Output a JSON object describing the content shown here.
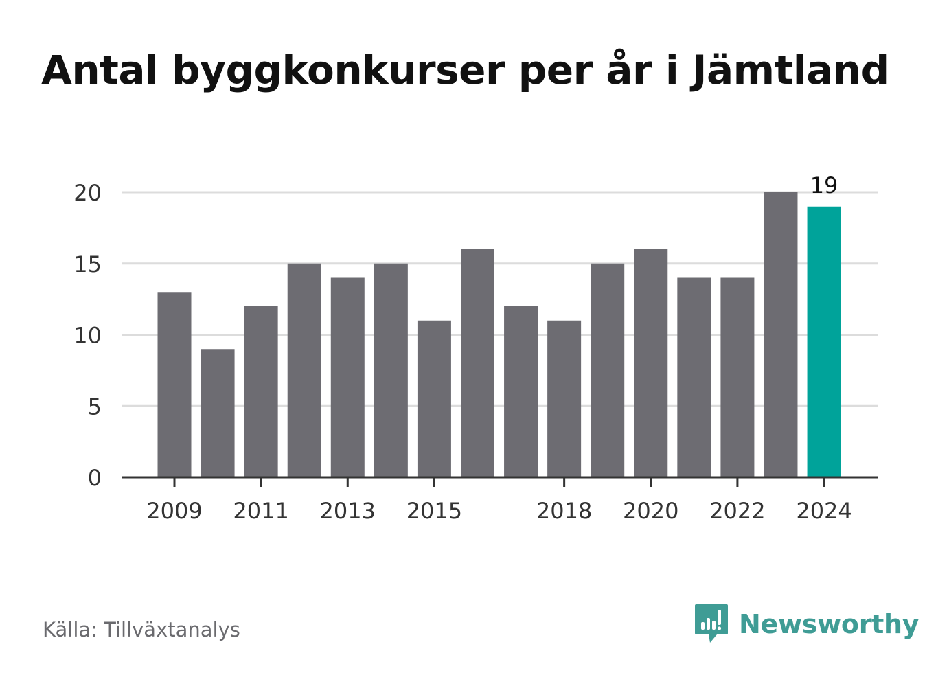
{
  "title": "Antal byggkonkurser per år i Jämtland",
  "source": "Källa: Tillväxtanalys",
  "brand": {
    "name": "Newsworthy",
    "logo_icon": "newsworthy-logo-icon",
    "color": "#3f9c95"
  },
  "colors": {
    "bar": "#6d6c72",
    "highlight": "#00a39a",
    "grid": "#dcdcdc",
    "axis": "#333333",
    "text": "#333333"
  },
  "chart_data": {
    "type": "bar",
    "x": [
      2009,
      2010,
      2011,
      2012,
      2013,
      2014,
      2015,
      2016,
      2017,
      2018,
      2019,
      2020,
      2021,
      2022,
      2023,
      2024
    ],
    "values": [
      13,
      9,
      12,
      15,
      14,
      15,
      11,
      16,
      12,
      11,
      15,
      16,
      14,
      14,
      20,
      19
    ],
    "x_tick_labels": [
      "2009",
      "2011",
      "2013",
      "2015",
      "2018",
      "2020",
      "2022",
      "2024"
    ],
    "y_ticks": [
      "0",
      "5",
      "10",
      "15",
      "20"
    ],
    "ylim": [
      0,
      20
    ],
    "grid": true,
    "highlight_year": 2024,
    "data_labels": [
      {
        "x": 2024,
        "text": "19"
      }
    ]
  }
}
